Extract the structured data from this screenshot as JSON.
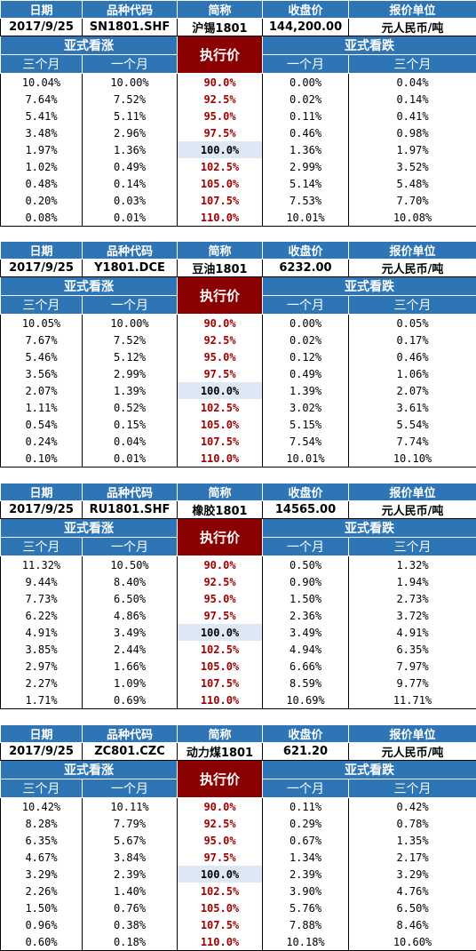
{
  "labels": {
    "date": "日期",
    "code": "品种代码",
    "short_name": "简称",
    "close": "收盘价",
    "unit": "报价单位",
    "asian_call": "亚式看涨",
    "asian_put": "亚式看跌",
    "strike": "执行价",
    "three_month": "三个月",
    "one_month": "一个月"
  },
  "blocks": [
    {
      "date": "2017/9/25",
      "code": "SN1801.SHF",
      "name": "沪锡1801",
      "close": "144,200.00",
      "unit": "元人民币/吨",
      "rows": [
        {
          "call3": "10.04%",
          "call1": "10.00%",
          "strike": "90.0%",
          "put1": "0.00%",
          "put3": "0.04%"
        },
        {
          "call3": "7.64%",
          "call1": "7.52%",
          "strike": "92.5%",
          "put1": "0.02%",
          "put3": "0.14%"
        },
        {
          "call3": "5.41%",
          "call1": "5.11%",
          "strike": "95.0%",
          "put1": "0.11%",
          "put3": "0.41%"
        },
        {
          "call3": "3.48%",
          "call1": "2.96%",
          "strike": "97.5%",
          "put1": "0.46%",
          "put3": "0.98%"
        },
        {
          "call3": "1.97%",
          "call1": "1.36%",
          "strike": "100.0%",
          "put1": "1.36%",
          "put3": "1.97%"
        },
        {
          "call3": "1.02%",
          "call1": "0.49%",
          "strike": "102.5%",
          "put1": "2.99%",
          "put3": "3.52%"
        },
        {
          "call3": "0.48%",
          "call1": "0.14%",
          "strike": "105.0%",
          "put1": "5.14%",
          "put3": "5.48%"
        },
        {
          "call3": "0.20%",
          "call1": "0.03%",
          "strike": "107.5%",
          "put1": "7.53%",
          "put3": "7.70%"
        },
        {
          "call3": "0.08%",
          "call1": "0.01%",
          "strike": "110.0%",
          "put1": "10.01%",
          "put3": "10.08%"
        }
      ]
    },
    {
      "date": "2017/9/25",
      "code": "Y1801.DCE",
      "name": "豆油1801",
      "close": "6232.00",
      "unit": "元人民币/吨",
      "rows": [
        {
          "call3": "10.05%",
          "call1": "10.00%",
          "strike": "90.0%",
          "put1": "0.00%",
          "put3": "0.05%"
        },
        {
          "call3": "7.67%",
          "call1": "7.52%",
          "strike": "92.5%",
          "put1": "0.02%",
          "put3": "0.17%"
        },
        {
          "call3": "5.46%",
          "call1": "5.12%",
          "strike": "95.0%",
          "put1": "0.12%",
          "put3": "0.46%"
        },
        {
          "call3": "3.56%",
          "call1": "2.99%",
          "strike": "97.5%",
          "put1": "0.49%",
          "put3": "1.06%"
        },
        {
          "call3": "2.07%",
          "call1": "1.39%",
          "strike": "100.0%",
          "put1": "1.39%",
          "put3": "2.07%"
        },
        {
          "call3": "1.11%",
          "call1": "0.52%",
          "strike": "102.5%",
          "put1": "3.02%",
          "put3": "3.61%"
        },
        {
          "call3": "0.54%",
          "call1": "0.15%",
          "strike": "105.0%",
          "put1": "5.15%",
          "put3": "5.54%"
        },
        {
          "call3": "0.24%",
          "call1": "0.04%",
          "strike": "107.5%",
          "put1": "7.54%",
          "put3": "7.74%"
        },
        {
          "call3": "0.10%",
          "call1": "0.01%",
          "strike": "110.0%",
          "put1": "10.01%",
          "put3": "10.10%"
        }
      ]
    },
    {
      "date": "2017/9/25",
      "code": "RU1801.SHF",
      "name": "橡胶1801",
      "close": "14565.00",
      "unit": "元人民币/吨",
      "rows": [
        {
          "call3": "11.32%",
          "call1": "10.50%",
          "strike": "90.0%",
          "put1": "0.50%",
          "put3": "1.32%"
        },
        {
          "call3": "9.44%",
          "call1": "8.40%",
          "strike": "92.5%",
          "put1": "0.90%",
          "put3": "1.94%"
        },
        {
          "call3": "7.73%",
          "call1": "6.50%",
          "strike": "95.0%",
          "put1": "1.50%",
          "put3": "2.73%"
        },
        {
          "call3": "6.22%",
          "call1": "4.86%",
          "strike": "97.5%",
          "put1": "2.36%",
          "put3": "3.72%"
        },
        {
          "call3": "4.91%",
          "call1": "3.49%",
          "strike": "100.0%",
          "put1": "3.49%",
          "put3": "4.91%"
        },
        {
          "call3": "3.85%",
          "call1": "2.44%",
          "strike": "102.5%",
          "put1": "4.94%",
          "put3": "6.35%"
        },
        {
          "call3": "2.97%",
          "call1": "1.66%",
          "strike": "105.0%",
          "put1": "6.66%",
          "put3": "7.97%"
        },
        {
          "call3": "2.27%",
          "call1": "1.09%",
          "strike": "107.5%",
          "put1": "8.59%",
          "put3": "9.77%"
        },
        {
          "call3": "1.71%",
          "call1": "0.69%",
          "strike": "110.0%",
          "put1": "10.69%",
          "put3": "11.71%"
        }
      ]
    },
    {
      "date": "2017/9/25",
      "code": "ZC801.CZC",
      "name": "动力煤1801",
      "close": "621.20",
      "unit": "元人民币/吨",
      "rows": [
        {
          "call3": "10.42%",
          "call1": "10.11%",
          "strike": "90.0%",
          "put1": "0.11%",
          "put3": "0.42%"
        },
        {
          "call3": "8.28%",
          "call1": "7.79%",
          "strike": "92.5%",
          "put1": "0.29%",
          "put3": "0.78%"
        },
        {
          "call3": "6.35%",
          "call1": "5.67%",
          "strike": "95.0%",
          "put1": "0.67%",
          "put3": "1.35%"
        },
        {
          "call3": "4.67%",
          "call1": "3.84%",
          "strike": "97.5%",
          "put1": "1.34%",
          "put3": "2.17%"
        },
        {
          "call3": "3.29%",
          "call1": "2.39%",
          "strike": "100.0%",
          "put1": "2.39%",
          "put3": "3.29%"
        },
        {
          "call3": "2.26%",
          "call1": "1.40%",
          "strike": "102.5%",
          "put1": "3.90%",
          "put3": "4.76%"
        },
        {
          "call3": "1.50%",
          "call1": "0.76%",
          "strike": "105.0%",
          "put1": "5.76%",
          "put3": "6.50%"
        },
        {
          "call3": "0.96%",
          "call1": "0.38%",
          "strike": "107.5%",
          "put1": "7.88%",
          "put3": "8.46%"
        },
        {
          "call3": "0.60%",
          "call1": "0.18%",
          "strike": "110.0%",
          "put1": "10.18%",
          "put3": "10.60%"
        }
      ]
    }
  ],
  "colors": {
    "header_blue": "#2e75b6",
    "strike_header": "#8b0000",
    "strike_text": "#a00000",
    "atm_highlight": "#dde8f4"
  }
}
